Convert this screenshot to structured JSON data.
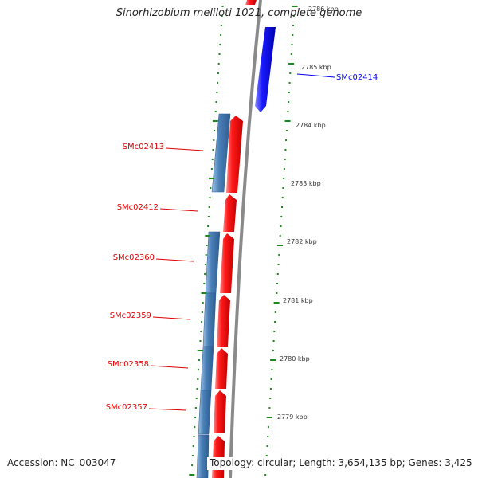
{
  "title": "Sinorhizobium meliloti 1021, complete genome",
  "accession_label": "Accession: NC_003047",
  "summary_label": "Topology: circular; Length: 3,654,135 bp; Genes: 3,425",
  "ruler": [
    {
      "label": "2786 kbp"
    },
    {
      "label": "2785 kbp"
    },
    {
      "label": "2784 kbp"
    },
    {
      "label": "2783 kbp"
    },
    {
      "label": "2782 kbp"
    },
    {
      "label": "2781 kbp"
    },
    {
      "label": "2780 kbp"
    },
    {
      "label": "2779 kbp"
    }
  ],
  "gene_labels": [
    {
      "name": "SMc02414",
      "color": "#0000ee"
    },
    {
      "name": "SMc02413",
      "color": "#dd0000"
    },
    {
      "name": "SMc02412",
      "color": "#dd0000"
    },
    {
      "name": "SMc02360",
      "color": "#dd0000"
    },
    {
      "name": "SMc02359",
      "color": "#dd0000"
    },
    {
      "name": "SMc02358",
      "color": "#dd0000"
    },
    {
      "name": "SMc02357",
      "color": "#dd0000"
    }
  ],
  "colors": {
    "backbone": "#8a8a8a",
    "tick": "#1a8a1a",
    "cds_reverse": "#ee1111",
    "cds_forward": "#1a1aee",
    "gene_track": "#4a80b8"
  }
}
